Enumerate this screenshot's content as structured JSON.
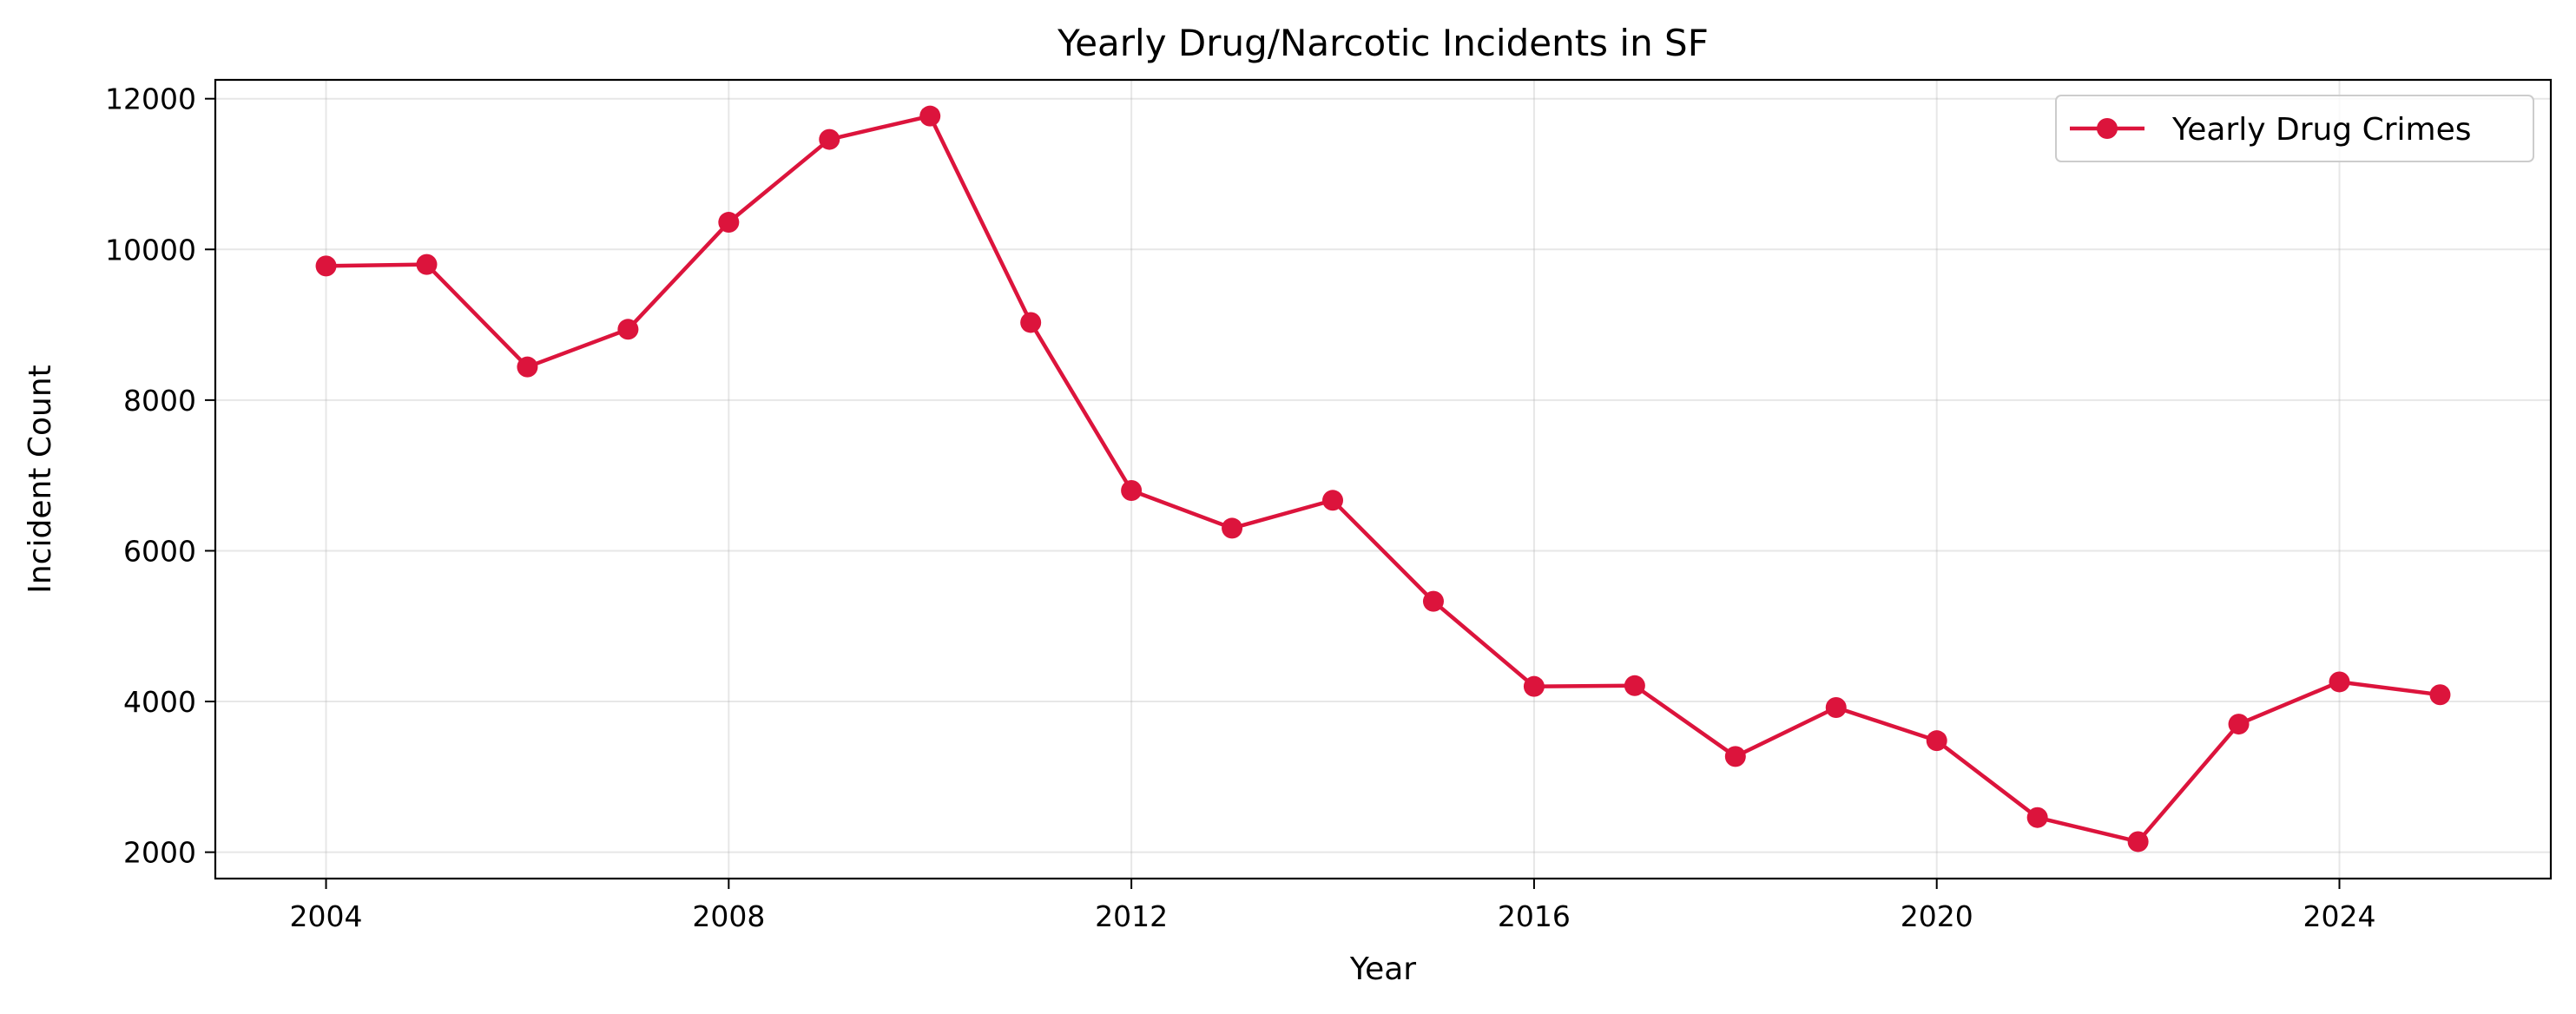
{
  "chart_data": {
    "type": "line",
    "title": "Yearly Drug/Narcotic Incidents in SF",
    "xlabel": "Year",
    "ylabel": "Incident Count",
    "xlim": [
      2002.9,
      2026.1
    ],
    "ylim": [
      1650,
      12250
    ],
    "xticks": [
      2004,
      2008,
      2012,
      2016,
      2020,
      2024
    ],
    "yticks": [
      2000,
      4000,
      6000,
      8000,
      10000,
      12000
    ],
    "grid": true,
    "legend_position": "top-right",
    "series": [
      {
        "name": "Yearly Drug Crimes",
        "color": "#dc143c",
        "x": [
          2004,
          2005,
          2006,
          2007,
          2008,
          2009,
          2010,
          2011,
          2012,
          2013,
          2014,
          2015,
          2016,
          2017,
          2018,
          2019,
          2020,
          2021,
          2022,
          2023,
          2024,
          2025
        ],
        "y": [
          9780,
          9800,
          8440,
          8940,
          10360,
          11460,
          11770,
          9030,
          6800,
          6300,
          6670,
          5330,
          4200,
          4210,
          3270,
          3920,
          3480,
          2460,
          2140,
          3700,
          4260,
          4090
        ]
      }
    ]
  }
}
